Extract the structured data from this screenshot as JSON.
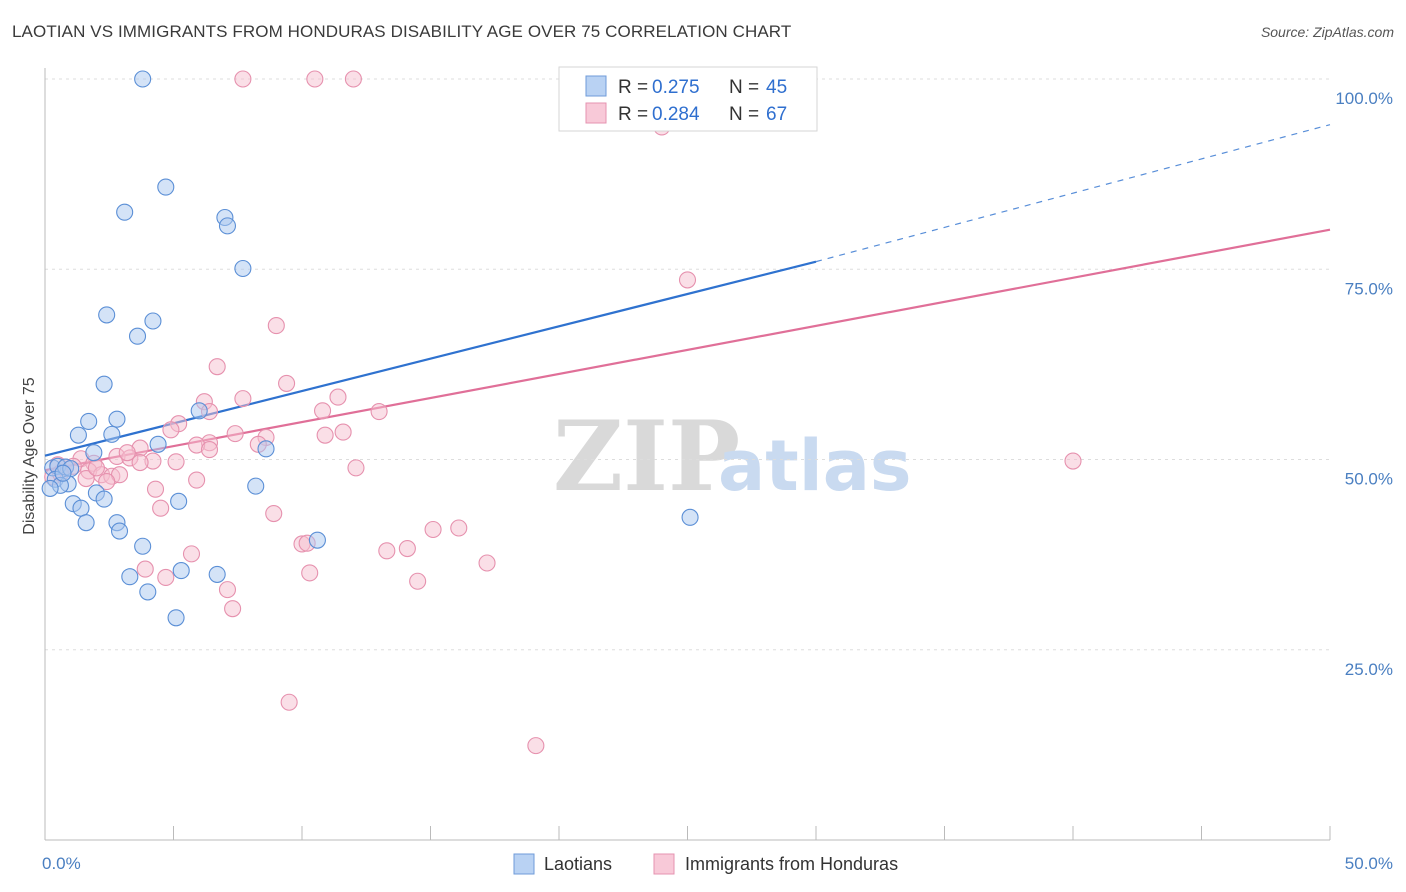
{
  "header": {
    "title": "LAOTIAN VS IMMIGRANTS FROM HONDURAS DISABILITY AGE OVER 75 CORRELATION CHART",
    "source": "Source: ZipAtlas.com"
  },
  "watermark": {
    "zip": "ZIP",
    "atlas": "atlas"
  },
  "colors": {
    "blue_fill": "#a9c8f0",
    "blue_stroke": "#5b8fd6",
    "blue_line": "#2f72cf",
    "pink_fill": "#f6bfd0",
    "pink_stroke": "#e691ae",
    "pink_line": "#e06f98",
    "tick_text": "#4a7fc1",
    "grid": "#dddddd"
  },
  "legend": {
    "rows": [
      {
        "r_label": "R = ",
        "r_value": "0.275",
        "n_label": "N = ",
        "n_value": "45"
      },
      {
        "r_label": "R = ",
        "r_value": "0.284",
        "n_label": "N = ",
        "n_value": "67"
      }
    ]
  },
  "bottom_legend": {
    "items": [
      "Laotians",
      "Immigrants from Honduras"
    ]
  },
  "chart_data": {
    "type": "scatter",
    "title": "LAOTIAN VS IMMIGRANTS FROM HONDURAS DISABILITY AGE OVER 75 CORRELATION CHART",
    "xlabel": "",
    "ylabel": "Disability Age Over 75",
    "xlim": [
      0,
      50
    ],
    "ylim": [
      0,
      100
    ],
    "x_tick_labels": [
      "0.0%",
      "50.0%"
    ],
    "y_ticks": [
      25,
      50,
      75,
      100
    ],
    "y_tick_labels": [
      "25.0%",
      "50.0%",
      "75.0%",
      "100.0%"
    ],
    "grid": true,
    "series": [
      {
        "name": "Laotians",
        "r": 0.275,
        "n": 45,
        "trend": {
          "x0": 0,
          "y0": 50.5,
          "x1": 30,
          "y1": 76,
          "dash_to_x": 50,
          "dash_to_y": 94
        },
        "points": [
          [
            3.8,
            100
          ],
          [
            26.3,
            100
          ],
          [
            4.7,
            85.8
          ],
          [
            3.1,
            82.5
          ],
          [
            7.0,
            81.8
          ],
          [
            7.1,
            80.7
          ],
          [
            7.7,
            75.1
          ],
          [
            2.4,
            69.0
          ],
          [
            4.2,
            68.2
          ],
          [
            3.6,
            66.2
          ],
          [
            2.3,
            59.9
          ],
          [
            6.0,
            56.4
          ],
          [
            1.7,
            55.0
          ],
          [
            2.8,
            55.3
          ],
          [
            1.3,
            53.2
          ],
          [
            2.6,
            53.3
          ],
          [
            4.4,
            52.0
          ],
          [
            1.9,
            50.9
          ],
          [
            8.6,
            51.4
          ],
          [
            0.3,
            48.9
          ],
          [
            0.5,
            49.1
          ],
          [
            0.8,
            49.0
          ],
          [
            1.0,
            48.8
          ],
          [
            0.4,
            47.4
          ],
          [
            0.9,
            46.8
          ],
          [
            0.6,
            46.6
          ],
          [
            0.2,
            46.2
          ],
          [
            8.2,
            46.5
          ],
          [
            2.0,
            45.6
          ],
          [
            2.3,
            44.8
          ],
          [
            1.1,
            44.2
          ],
          [
            1.4,
            43.6
          ],
          [
            5.2,
            44.5
          ],
          [
            1.6,
            41.7
          ],
          [
            2.8,
            41.7
          ],
          [
            2.9,
            40.6
          ],
          [
            10.6,
            39.4
          ],
          [
            3.8,
            38.6
          ],
          [
            5.3,
            35.4
          ],
          [
            6.7,
            34.9
          ],
          [
            3.3,
            34.6
          ],
          [
            4.0,
            32.6
          ],
          [
            5.1,
            29.2
          ],
          [
            25.1,
            42.4
          ],
          [
            0.7,
            48.2
          ]
        ]
      },
      {
        "name": "Immigrants from Honduras",
        "r": 0.284,
        "n": 67,
        "trend": {
          "x0": 0,
          "y0": 48.6,
          "x1": 50,
          "y1": 80.2
        },
        "points": [
          [
            7.7,
            100
          ],
          [
            10.5,
            100
          ],
          [
            12.0,
            100
          ],
          [
            24.0,
            93.7
          ],
          [
            25.0,
            73.6
          ],
          [
            9.0,
            67.6
          ],
          [
            6.7,
            62.2
          ],
          [
            9.4,
            60.0
          ],
          [
            11.4,
            58.2
          ],
          [
            7.7,
            58.0
          ],
          [
            6.2,
            57.6
          ],
          [
            10.8,
            56.4
          ],
          [
            13.0,
            56.3
          ],
          [
            6.4,
            56.3
          ],
          [
            5.2,
            54.7
          ],
          [
            4.9,
            53.9
          ],
          [
            7.4,
            53.4
          ],
          [
            8.6,
            52.9
          ],
          [
            11.6,
            53.6
          ],
          [
            10.9,
            53.2
          ],
          [
            6.4,
            52.2
          ],
          [
            5.9,
            51.9
          ],
          [
            3.7,
            51.5
          ],
          [
            8.3,
            52.0
          ],
          [
            2.8,
            50.4
          ],
          [
            3.3,
            50.2
          ],
          [
            4.2,
            49.8
          ],
          [
            5.1,
            49.7
          ],
          [
            1.4,
            50.1
          ],
          [
            1.9,
            49.5
          ],
          [
            0.5,
            49.3
          ],
          [
            0.8,
            49.0
          ],
          [
            1.1,
            49.1
          ],
          [
            1.7,
            48.5
          ],
          [
            3.7,
            49.6
          ],
          [
            12.1,
            48.9
          ],
          [
            2.2,
            48.0
          ],
          [
            2.6,
            47.8
          ],
          [
            2.9,
            48.0
          ],
          [
            5.9,
            47.3
          ],
          [
            1.6,
            47.5
          ],
          [
            0.3,
            47.7
          ],
          [
            4.3,
            46.1
          ],
          [
            4.5,
            43.6
          ],
          [
            8.9,
            42.9
          ],
          [
            15.1,
            40.8
          ],
          [
            16.1,
            41.0
          ],
          [
            10.0,
            38.9
          ],
          [
            10.2,
            39.0
          ],
          [
            5.7,
            37.6
          ],
          [
            13.3,
            38.0
          ],
          [
            14.1,
            38.3
          ],
          [
            17.2,
            36.4
          ],
          [
            3.9,
            35.6
          ],
          [
            10.3,
            35.1
          ],
          [
            4.7,
            34.5
          ],
          [
            14.5,
            34.0
          ],
          [
            7.1,
            32.9
          ],
          [
            7.3,
            30.4
          ],
          [
            9.5,
            18.1
          ],
          [
            19.1,
            12.4
          ],
          [
            40.0,
            49.8
          ],
          [
            2.0,
            48.9
          ],
          [
            0.6,
            48.2
          ],
          [
            6.4,
            51.3
          ],
          [
            3.2,
            50.9
          ],
          [
            2.4,
            47.1
          ]
        ]
      }
    ]
  }
}
